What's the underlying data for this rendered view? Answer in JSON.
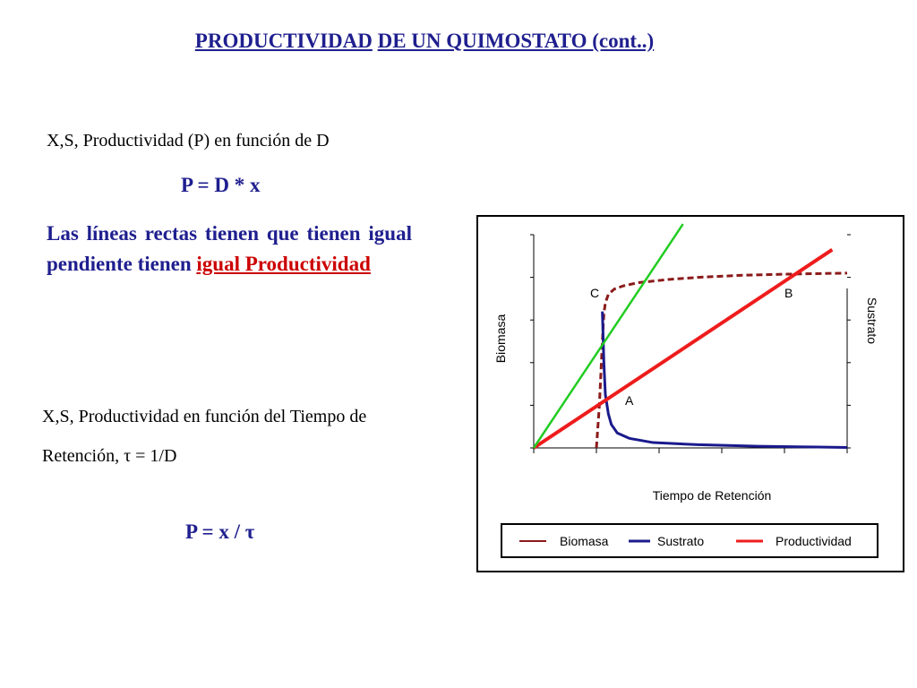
{
  "slide": {
    "title_part1": "PRODUCTIVIDAD",
    "title_part2": "DE UN QUIMOSTATO (cont..)",
    "line1": "X,S, Productividad (P) en función de D",
    "equation1": "P = D * x",
    "paragraph_main": "Las líneas rectas tienen que tienen igual pendiente tienen",
    "paragraph_highlight": "igual Productividad",
    "line2": "X,S, Productividad en función del Tiempo de Retención, τ = 1/D",
    "equation2": "P = x / τ"
  },
  "chart_data": {
    "type": "line",
    "xlabel": "Tiempo de Retención",
    "ylabel_left": "Biomasa",
    "ylabel_right": "Sustrato",
    "annotations": [
      "C",
      "B",
      "A"
    ],
    "legend": [
      "Biomasa",
      "Sustrato",
      "Productividad"
    ],
    "legend_position": "bottom",
    "colors": {
      "Biomasa": "#8b1a1a",
      "Sustrato": "#1a1a8c",
      "Productividad": "#ee1c1c",
      "tangent": "#22cc22"
    },
    "series": [
      {
        "name": "Biomasa",
        "style": "dashed",
        "x": [
          0.21,
          0.22,
          0.23,
          0.235,
          0.24,
          0.25,
          0.27,
          0.3,
          0.35,
          0.45,
          0.55,
          0.7,
          0.85,
          1.05
        ],
        "y": [
          0.0,
          0.2,
          0.5,
          0.63,
          0.68,
          0.72,
          0.745,
          0.76,
          0.775,
          0.79,
          0.8,
          0.81,
          0.815,
          0.82
        ]
      },
      {
        "name": "Sustrato",
        "style": "solid",
        "x": [
          0.23,
          0.235,
          0.24,
          0.25,
          0.26,
          0.28,
          0.32,
          0.4,
          0.55,
          0.75,
          0.95,
          1.05
        ],
        "y": [
          0.64,
          0.4,
          0.25,
          0.16,
          0.11,
          0.07,
          0.045,
          0.025,
          0.015,
          0.008,
          0.004,
          0.002
        ]
      },
      {
        "name": "Productividad",
        "style": "solid",
        "x": [
          0.0,
          1.0
        ],
        "y": [
          0.0,
          0.93
        ]
      },
      {
        "name": "",
        "style": "solid",
        "x": [
          0.0,
          0.5
        ],
        "y": [
          0.0,
          1.05
        ]
      }
    ],
    "xlim": [
      0,
      1.05
    ],
    "ylim": [
      0,
      1.0
    ]
  }
}
